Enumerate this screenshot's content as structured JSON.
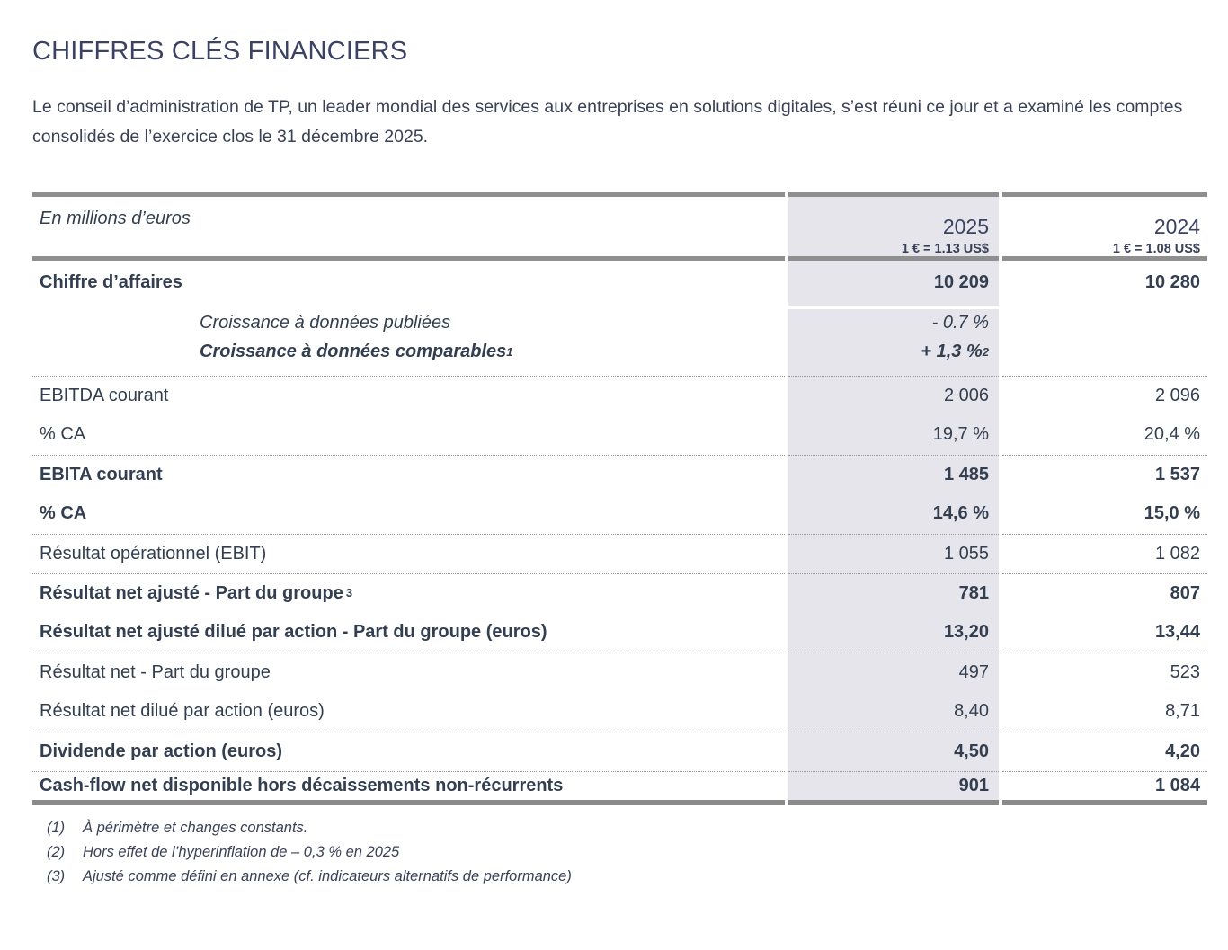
{
  "page": {
    "title": "CHIFFRES CLÉS FINANCIERS",
    "intro": "Le conseil d’administration de TP, un leader mondial des services aux entreprises en solutions digitales, s’est réuni ce jour et a examiné les comptes consolidés de l’exercice clos le 31 décembre 2025."
  },
  "table": {
    "unit_label": "En millions d’euros",
    "columns": [
      {
        "year": "2025",
        "rate": "1 € = 1.13 US$"
      },
      {
        "year": "2024",
        "rate": "1 € = 1.08 US$"
      }
    ],
    "rows": [
      {
        "label": "Chiffre d’affaires",
        "v2025": "10 209",
        "v2024": "10 280"
      },
      {
        "label": "Croissance à données publiées",
        "v2025": "- 0.7 %",
        "v2024": ""
      },
      {
        "label": "Croissance à données comparables",
        "label_sup": "1",
        "v2025": "+ 1,3 %",
        "v2025_sup": "2",
        "v2024": ""
      },
      {
        "label": "EBITDA courant",
        "v2025": "2 006",
        "v2024": "2 096"
      },
      {
        "label": "% CA",
        "v2025": "19,7 %",
        "v2024": "20,4 %"
      },
      {
        "label": "EBITA courant",
        "v2025": "1 485",
        "v2024": "1 537"
      },
      {
        "label": "% CA",
        "v2025": "14,6 %",
        "v2024": "15,0 %"
      },
      {
        "label": "Résultat opérationnel (EBIT)",
        "v2025": "1 055",
        "v2024": "1 082"
      },
      {
        "label": "Résultat net ajusté - Part du groupe",
        "label_sup": "3",
        "v2025": "781",
        "v2024": "807"
      },
      {
        "label": "Résultat net ajusté dilué par action - Part du groupe (euros)",
        "v2025": "13,20",
        "v2024": "13,44"
      },
      {
        "label": "Résultat net - Part du groupe",
        "v2025": "497",
        "v2024": "523"
      },
      {
        "label": "Résultat net dilué par action (euros)",
        "v2025": "8,40",
        "v2024": "8,71"
      },
      {
        "label": "Dividende par action (euros)",
        "v2025": "4,50",
        "v2024": "4,20"
      },
      {
        "label": "Cash-flow net disponible hors décaissements non-récurrents",
        "v2025": "901",
        "v2024": "1 084"
      }
    ]
  },
  "footnotes": [
    {
      "num": "(1)",
      "text": "À périmètre et changes constants."
    },
    {
      "num": "(2)",
      "text": "Hors effet de l’hyperinflation de – 0,3 % en 2025"
    },
    {
      "num": "(3)",
      "text": "Ajusté comme défini en annexe (cf. indicateurs alternatifs de performance)"
    }
  ]
}
